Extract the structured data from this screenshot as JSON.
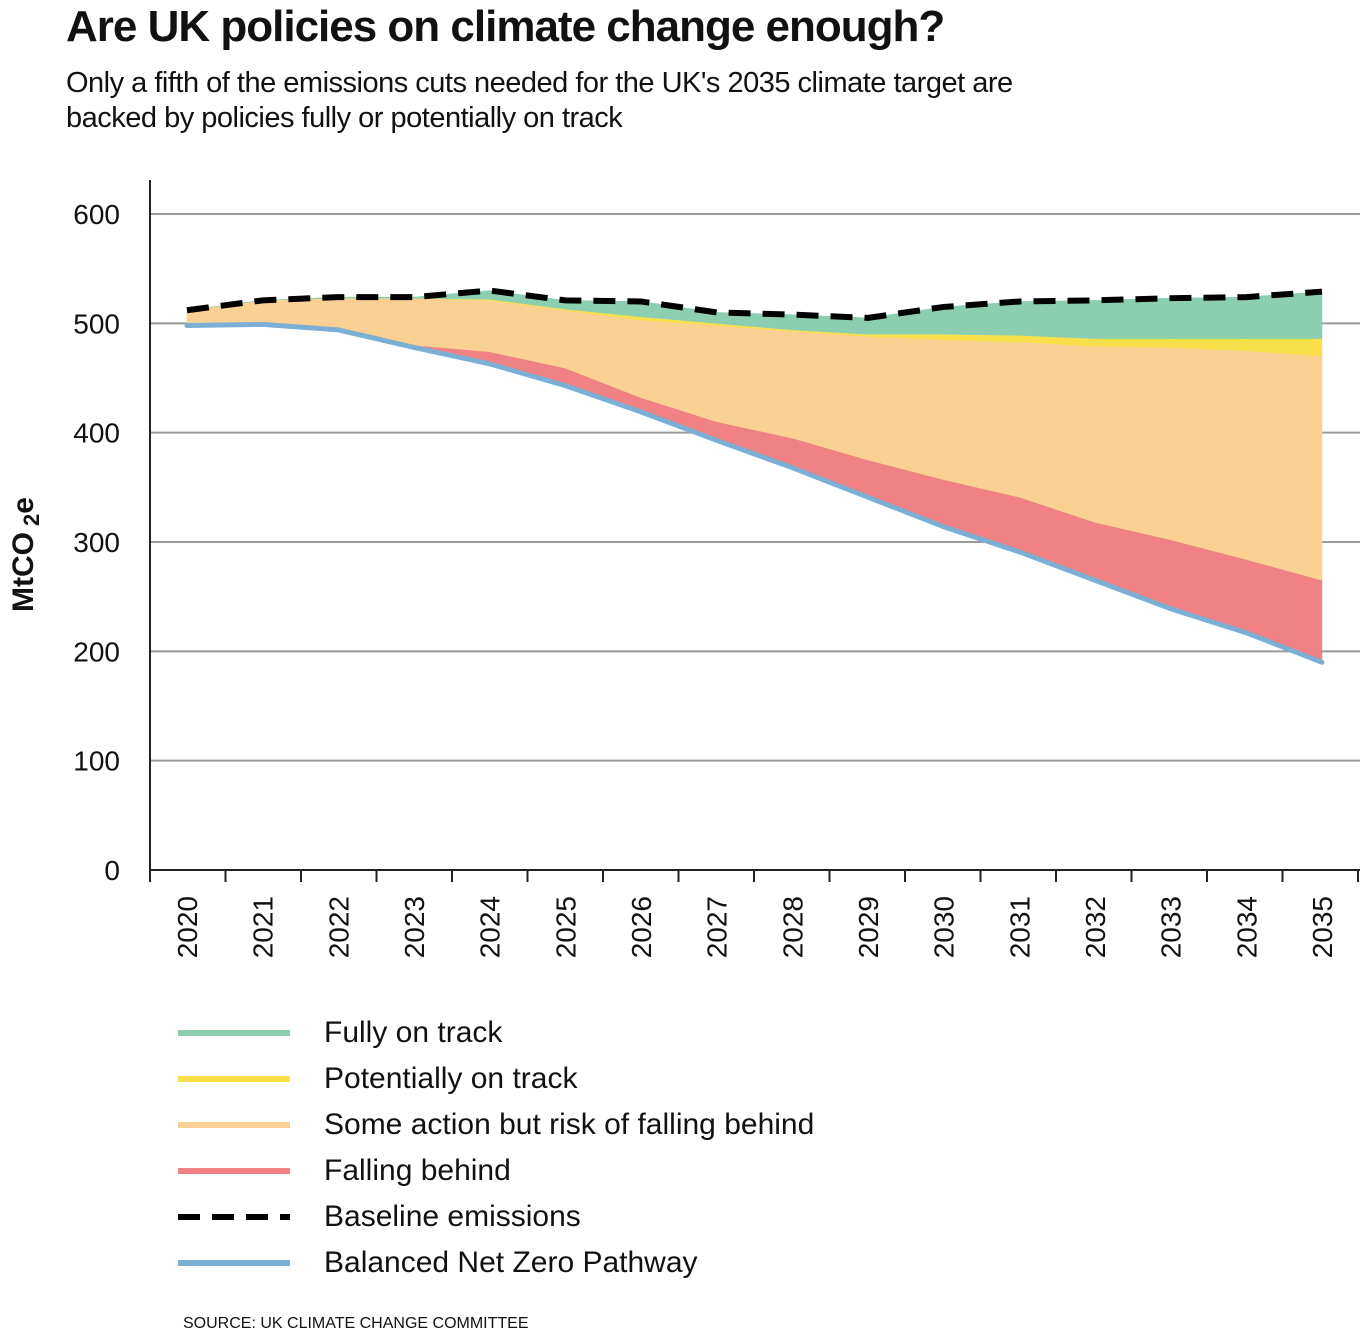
{
  "title": "Are UK policies on climate change enough?",
  "subtitle": "Only a fifth of the emissions cuts needed for the UK's 2035 climate target are backed by policies fully or potentially on track",
  "source": "SOURCE: UK CLIMATE CHANGE COMMITTEE",
  "chart_data": {
    "type": "area",
    "title": "Are UK policies on climate change enough?",
    "ylabel": "MtCO",
    "ylabel_sub": "2",
    "ylabel_suffix": "e",
    "ylim": [
      0,
      600
    ],
    "yticks": [
      0,
      100,
      200,
      300,
      400,
      500,
      600
    ],
    "grid": true,
    "legend_position": "bottom-left",
    "categories": [
      "2020",
      "2021",
      "2022",
      "2023",
      "2024",
      "2025",
      "2026",
      "2027",
      "2028",
      "2029",
      "2030",
      "2031",
      "2032",
      "2033",
      "2034",
      "2035"
    ],
    "bands": [
      {
        "name": "Falling behind",
        "color": "#f08286",
        "lower": [
          498,
          499,
          494,
          478,
          463,
          443,
          419,
          393,
          368,
          341,
          314,
          291,
          265,
          239,
          217,
          190
        ],
        "upper": [
          498,
          499,
          494,
          480,
          474,
          459,
          432,
          410,
          395,
          375,
          357,
          341,
          318,
          302,
          284,
          265
        ]
      },
      {
        "name": "Some action but risk of falling behind",
        "color": "#fbd193",
        "lower": [
          498,
          499,
          494,
          480,
          474,
          459,
          432,
          410,
          395,
          375,
          357,
          341,
          318,
          302,
          284,
          265
        ],
        "upper": [
          512,
          521,
          523,
          523,
          521,
          512,
          503,
          498,
          493,
          488,
          485,
          483,
          479,
          478,
          475,
          470
        ]
      },
      {
        "name": "Potentially on track",
        "color": "#f9e04b",
        "lower": [
          512,
          521,
          523,
          523,
          521,
          512,
          503,
          498,
          493,
          488,
          485,
          483,
          479,
          478,
          475,
          470
        ],
        "upper": [
          512,
          521,
          523,
          523,
          522,
          513,
          506,
          500,
          494,
          490,
          490,
          489,
          486,
          486,
          486,
          486
        ]
      },
      {
        "name": "Fully on track",
        "color": "#8ccfb0",
        "lower": [
          512,
          521,
          523,
          523,
          522,
          513,
          506,
          500,
          494,
          490,
          490,
          489,
          486,
          486,
          486,
          486
        ],
        "upper": [
          512,
          521,
          524,
          524,
          530,
          521,
          520,
          510,
          508,
          505,
          515,
          520,
          521,
          523,
          524,
          529
        ]
      }
    ],
    "lines": [
      {
        "name": "Baseline emissions",
        "color": "#000000",
        "style": "dashed",
        "values": [
          512,
          521,
          524,
          524,
          530,
          521,
          520,
          510,
          508,
          505,
          515,
          520,
          521,
          523,
          524,
          529
        ]
      },
      {
        "name": "Balanced Net Zero Pathway",
        "color": "#7bafd4",
        "style": "solid",
        "values": [
          498,
          499,
          494,
          478,
          463,
          443,
          419,
          393,
          368,
          341,
          314,
          291,
          265,
          239,
          217,
          190
        ]
      }
    ]
  },
  "legend": [
    {
      "label": "Fully on track",
      "color": "#8ccfb0",
      "style": "solid"
    },
    {
      "label": "Potentially on track",
      "color": "#f9e04b",
      "style": "solid"
    },
    {
      "label": "Some action but risk of falling behind",
      "color": "#fbd193",
      "style": "solid"
    },
    {
      "label": "Falling behind",
      "color": "#f08286",
      "style": "solid"
    },
    {
      "label": "Baseline emissions",
      "color": "#000000",
      "style": "dashed"
    },
    {
      "label": "Balanced Net Zero Pathway",
      "color": "#7bafd4",
      "style": "solid"
    }
  ]
}
